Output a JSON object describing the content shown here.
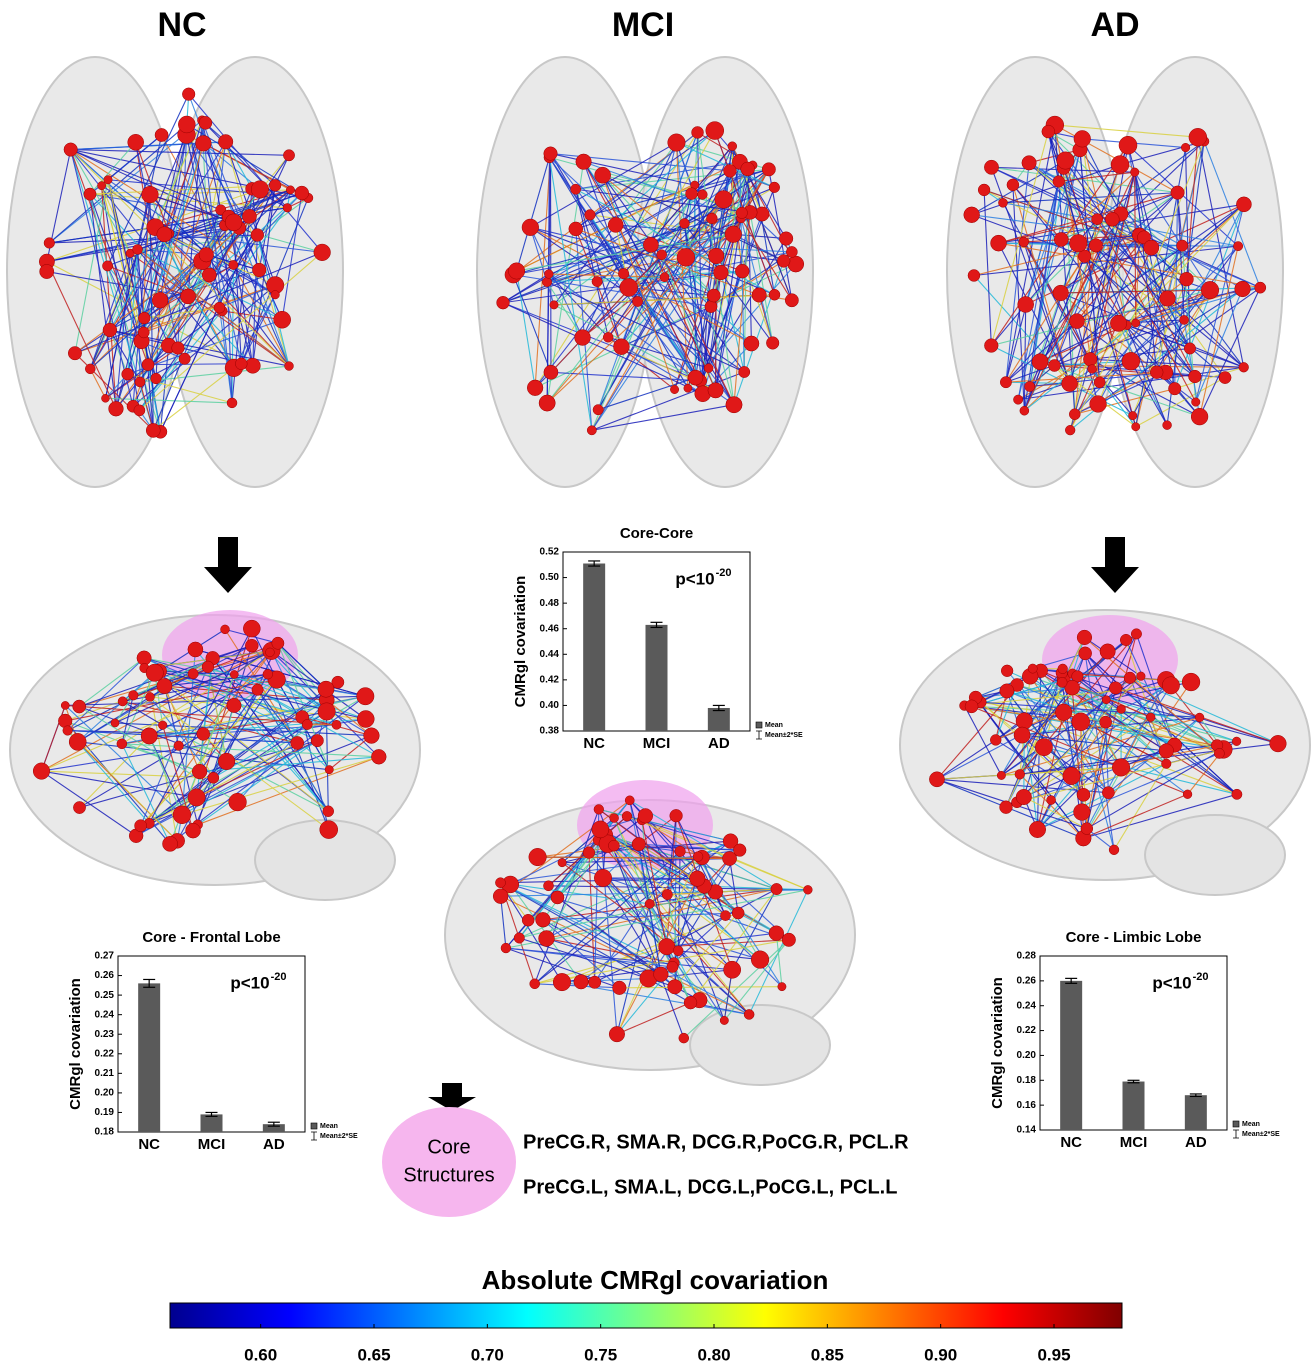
{
  "columns": [
    "NC",
    "MCI",
    "AD"
  ],
  "core_structures": {
    "label_lines": [
      "Core",
      "Structures"
    ],
    "lines": [
      "PreCG.R, SMA.R, DCG.R,PoCG.R, PCL.R",
      "PreCG.L, SMA.L, DCG.L,PoCG.L, PCL.L"
    ]
  },
  "chart_data": [
    {
      "type": "bar",
      "title": "Core-Core",
      "ylabel": "CMRgl covariation",
      "categories": [
        "NC",
        "MCI",
        "AD"
      ],
      "values": [
        0.511,
        0.463,
        0.398
      ],
      "errors": [
        0.002,
        0.002,
        0.002
      ],
      "color": "#5a5a5a",
      "ylim": [
        0.38,
        0.52
      ],
      "yticks": [
        0.38,
        {
          "value": 0.4,
          "label": "0.40"
        },
        0.42,
        0.44,
        0.46,
        0.48,
        {
          "value": 0.5,
          "label": "0.50"
        },
        0.52
      ],
      "annotation": {
        "text": "p<10",
        "superscript": "-20"
      },
      "legend": [
        "Mean",
        "Mean±2*SE"
      ]
    },
    {
      "type": "bar",
      "title": "Core - Frontal Lobe",
      "ylabel": "CMRgl covariation",
      "categories": [
        "NC",
        "MCI",
        "AD"
      ],
      "values": [
        0.256,
        0.189,
        0.184
      ],
      "errors": [
        0.002,
        0.001,
        0.001
      ],
      "color": "#5a5a5a",
      "ylim": [
        0.18,
        0.27
      ],
      "yticks": [
        0.18,
        0.19,
        {
          "value": 0.2,
          "label": "0.20"
        },
        0.21,
        0.22,
        0.23,
        0.24,
        0.25,
        0.26,
        0.27
      ],
      "annotation": {
        "text": "p<10",
        "superscript": "-20"
      },
      "legend": [
        "Mean",
        "Mean±2*SE"
      ]
    },
    {
      "type": "bar",
      "title": "Core - Limbic Lobe",
      "ylabel": "CMRgl covariation",
      "categories": [
        "NC",
        "MCI",
        "AD"
      ],
      "values": [
        0.26,
        0.179,
        0.168
      ],
      "errors": [
        0.002,
        0.001,
        0.001
      ],
      "color": "#5a5a5a",
      "ylim": [
        0.14,
        0.28
      ],
      "yticks": [
        0.14,
        0.16,
        0.18,
        {
          "value": 0.2,
          "label": "0.20"
        },
        0.22,
        0.24,
        0.26,
        0.28
      ],
      "annotation": {
        "text": "p<10",
        "superscript": "-20"
      },
      "legend": [
        "Mean",
        "Mean±2*SE"
      ]
    },
    {
      "type": "colorbar",
      "title": "Absolute CMRgl covariation",
      "colormap": "jet",
      "xlim": [
        0.56,
        0.98
      ],
      "xticks": [
        {
          "value": 0.6,
          "label": "0.60"
        },
        0.65,
        {
          "value": 0.7,
          "label": "0.70"
        },
        0.75,
        {
          "value": 0.8,
          "label": "0.80"
        },
        0.85,
        {
          "value": 0.9,
          "label": "0.90"
        },
        0.95
      ]
    }
  ]
}
